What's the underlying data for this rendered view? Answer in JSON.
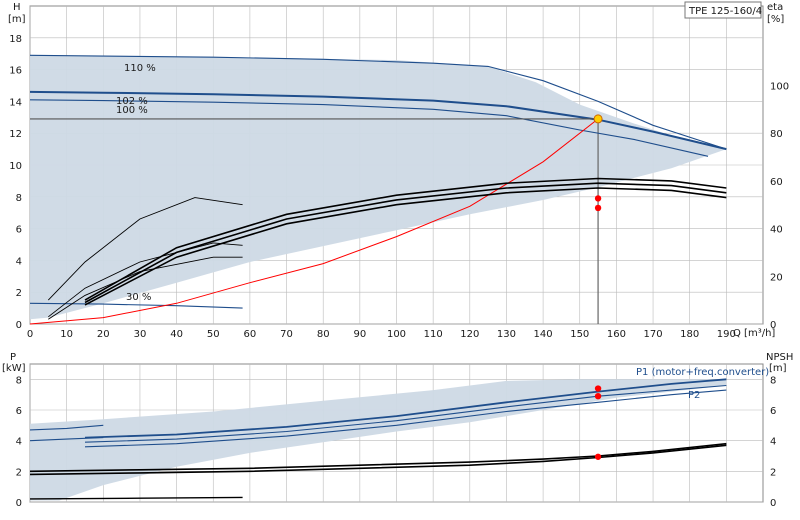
{
  "chart_data": {
    "type": "line",
    "model_label": "TPE 125-160/4",
    "colors": {
      "envelope_fill": "#cdd9e5",
      "pump_curve": "#1f4e8c",
      "efficiency_curve": "#000000",
      "system_curve": "#ff0000",
      "duty_point": "#ff0000",
      "duty_point_highlight": "#ffcc00",
      "grid": "#bbbbbb"
    },
    "duty_point_q": 155,
    "top_chart": {
      "y_label": "H",
      "y_unit": "[m]",
      "y2_label": "eta",
      "y2_unit": "[%]",
      "x_label": "Q [m³/h]",
      "xlim": [
        0,
        200
      ],
      "ylim": [
        0,
        20
      ],
      "y2lim": [
        0,
        133.3
      ],
      "x_ticks": [
        "0",
        "10",
        "20",
        "30",
        "40",
        "50",
        "60",
        "70",
        "80",
        "90",
        "100",
        "110",
        "120",
        "130",
        "140",
        "150",
        "160",
        "170",
        "180",
        "190"
      ],
      "y_ticks": [
        "0",
        "2",
        "4",
        "6",
        "8",
        "10",
        "12",
        "14",
        "16",
        "18"
      ],
      "y2_ticks": [
        "0",
        "20",
        "40",
        "60",
        "80",
        "100"
      ],
      "curve_labels": [
        "110 %",
        "102 %",
        "100 %",
        "30 %"
      ],
      "envelope": [
        [
          0,
          16.9
        ],
        [
          10,
          16.85
        ],
        [
          50,
          16.8
        ],
        [
          100,
          16.6
        ],
        [
          125,
          16.2
        ],
        [
          138,
          15.2
        ],
        [
          150,
          13.8
        ],
        [
          165,
          12.6
        ],
        [
          180,
          11.5
        ],
        [
          190,
          11
        ],
        [
          175,
          9.8
        ],
        [
          155,
          8.6
        ],
        [
          140,
          7.8
        ],
        [
          120,
          6.9
        ],
        [
          100,
          5.9
        ],
        [
          80,
          4.9
        ],
        [
          60,
          3.9
        ],
        [
          40,
          2.6
        ],
        [
          20,
          1.3
        ],
        [
          5,
          0.4
        ],
        [
          0,
          0.3
        ]
      ],
      "head_curves": [
        {
          "name": "110 %",
          "x": [
            0,
            20,
            50,
            80,
            110,
            125,
            140,
            155,
            170,
            190
          ],
          "y": [
            16.9,
            16.85,
            16.78,
            16.65,
            16.4,
            16.2,
            15.3,
            14.0,
            12.5,
            11.0
          ]
        },
        {
          "name": "102 %",
          "x": [
            0,
            20,
            50,
            80,
            110,
            130,
            155,
            170,
            190
          ],
          "y": [
            14.6,
            14.55,
            14.45,
            14.3,
            14.05,
            13.7,
            12.85,
            12.1,
            11.0
          ]
        },
        {
          "name": "100 %",
          "x": [
            0,
            20,
            50,
            80,
            110,
            130,
            150,
            165,
            185
          ],
          "y": [
            14.1,
            14.05,
            13.95,
            13.8,
            13.5,
            13.1,
            12.2,
            11.6,
            10.55
          ]
        },
        {
          "name": "operating",
          "x": [
            0,
            60,
            110,
            130,
            145,
            155
          ],
          "y": [
            12.9,
            12.9,
            12.9,
            12.9,
            12.9,
            12.9
          ]
        },
        {
          "name": "30 %",
          "x": [
            0,
            20,
            40,
            58
          ],
          "y": [
            1.3,
            1.25,
            1.15,
            1.0
          ]
        }
      ],
      "system_curve": {
        "x": [
          0,
          20,
          40,
          60,
          80,
          100,
          120,
          140,
          155
        ],
        "y": [
          0,
          0.4,
          1.3,
          2.6,
          3.8,
          5.5,
          7.4,
          10.2,
          12.9
        ]
      },
      "efficiency_curves": [
        {
          "x": [
            15,
            40,
            70,
            100,
            130,
            155,
            175,
            190
          ],
          "y": [
            10,
            32,
            46,
            54,
            59,
            61,
            60,
            57
          ]
        },
        {
          "x": [
            15,
            40,
            70,
            100,
            130,
            155,
            175,
            190
          ],
          "y": [
            9,
            30,
            44,
            52,
            57,
            59,
            58,
            55
          ]
        },
        {
          "x": [
            15,
            40,
            70,
            100,
            130,
            155,
            175,
            190
          ],
          "y": [
            8,
            28,
            42,
            50,
            55,
            57,
            56,
            53
          ]
        },
        {
          "x": [
            5,
            15,
            30,
            50,
            58
          ],
          "y": [
            3,
            15,
            26,
            34,
            33
          ]
        },
        {
          "x": [
            5,
            15,
            30,
            50,
            58
          ],
          "y": [
            2,
            12,
            22,
            28,
            28
          ]
        },
        {
          "x": [
            5,
            15,
            30,
            45,
            58
          ],
          "y": [
            10,
            26,
            44,
            53,
            50
          ]
        }
      ],
      "duty_points": [
        {
          "x": 155,
          "y": 12.9,
          "highlight": true
        },
        {
          "x": 155,
          "y": 7.9
        },
        {
          "x": 155,
          "y": 7.3
        }
      ]
    },
    "bottom_chart": {
      "y_label": "P",
      "y_unit": "[kW]",
      "y2_label": "NPSH",
      "y2_unit": "[m]",
      "xlim": [
        0,
        200
      ],
      "ylim": [
        0,
        9
      ],
      "y2lim": [
        0,
        9
      ],
      "y_ticks": [
        "0",
        "2",
        "4",
        "6",
        "8"
      ],
      "y2_ticks": [
        "0",
        "2",
        "4",
        "6",
        "8"
      ],
      "labels": [
        "P1 (motor+freq.converter)",
        "P2"
      ],
      "envelope": [
        [
          0,
          5.1
        ],
        [
          20,
          5.4
        ],
        [
          50,
          5.9
        ],
        [
          80,
          6.6
        ],
        [
          110,
          7.3
        ],
        [
          130,
          7.9
        ],
        [
          150,
          8.0
        ],
        [
          190,
          8.0
        ],
        [
          190,
          7.6
        ],
        [
          160,
          6.8
        ],
        [
          140,
          6.0
        ],
        [
          120,
          5.2
        ],
        [
          100,
          4.6
        ],
        [
          80,
          3.9
        ],
        [
          60,
          3.2
        ],
        [
          40,
          2.3
        ],
        [
          20,
          1.1
        ],
        [
          8,
          0.1
        ],
        [
          0,
          0.1
        ]
      ],
      "power_curves": [
        {
          "name": "P1",
          "x": [
            15,
            40,
            70,
            100,
            130,
            155,
            175,
            190
          ],
          "y": [
            4.2,
            4.4,
            4.9,
            5.6,
            6.5,
            7.2,
            7.7,
            8.0
          ]
        },
        {
          "x": [
            15,
            40,
            70,
            100,
            130,
            155,
            175,
            190
          ],
          "y": [
            3.9,
            4.1,
            4.6,
            5.3,
            6.2,
            6.9,
            7.3,
            7.6
          ]
        },
        {
          "name": "P2",
          "x": [
            15,
            40,
            70,
            100,
            130,
            155,
            175,
            190
          ],
          "y": [
            3.6,
            3.8,
            4.3,
            5.0,
            5.9,
            6.5,
            7.0,
            7.3
          ]
        },
        {
          "x": [
            0,
            10,
            20
          ],
          "y": [
            4.7,
            4.8,
            5.0
          ]
        },
        {
          "x": [
            0,
            10,
            20
          ],
          "y": [
            4.0,
            4.1,
            4.2
          ]
        }
      ],
      "npsh_curves": [
        {
          "x": [
            0,
            30,
            60,
            90,
            120,
            140,
            155,
            170,
            190
          ],
          "y": [
            2.0,
            2.1,
            2.2,
            2.4,
            2.6,
            2.8,
            3.0,
            3.3,
            3.8
          ]
        },
        {
          "x": [
            0,
            30,
            60,
            90,
            120,
            140,
            155,
            170,
            190
          ],
          "y": [
            1.8,
            1.9,
            2.0,
            2.2,
            2.4,
            2.65,
            2.9,
            3.2,
            3.7
          ]
        },
        {
          "x": [
            0,
            30,
            58
          ],
          "y": [
            0.2,
            0.25,
            0.3
          ]
        }
      ],
      "duty_points": [
        {
          "x": 155,
          "y": 7.4
        },
        {
          "x": 155,
          "y": 6.9
        },
        {
          "x": 155,
          "y": 2.95
        }
      ]
    }
  }
}
